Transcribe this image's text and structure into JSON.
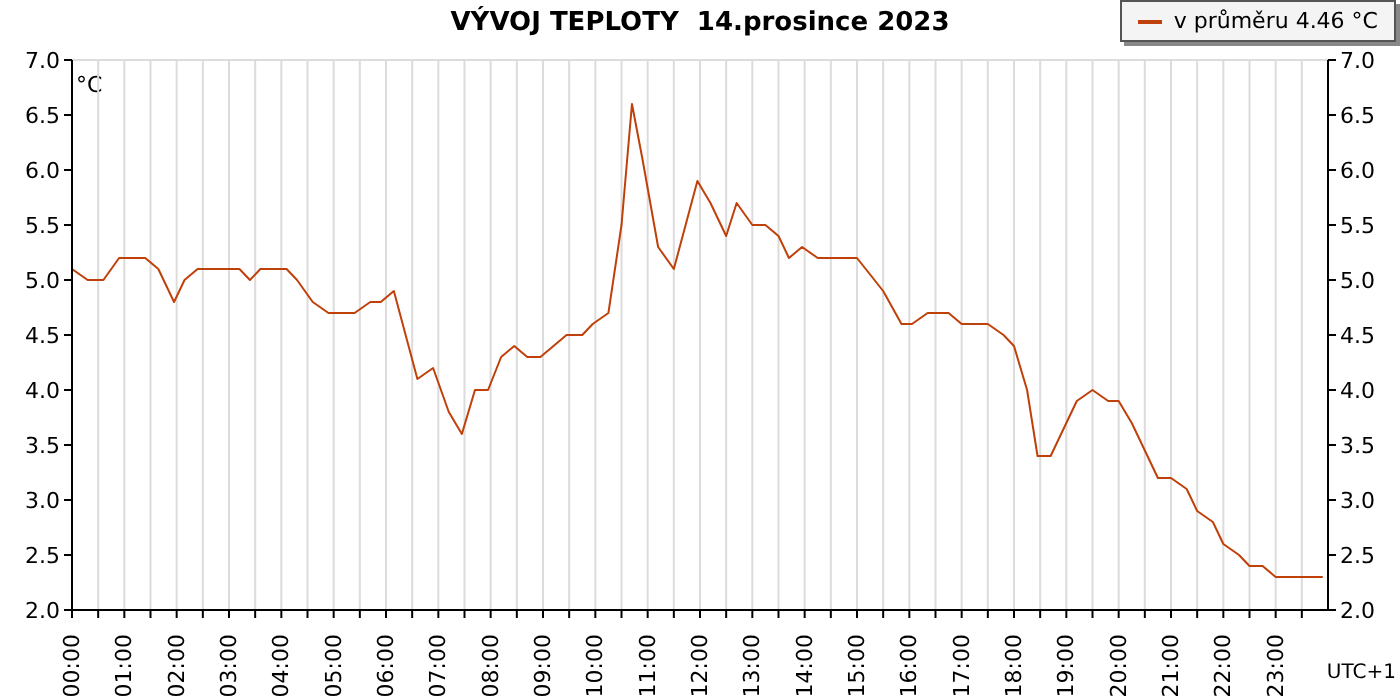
{
  "chart_data": {
    "type": "line",
    "title": "VÝVOJ TEPLOTY  14.prosince 2023",
    "ylabel": "°C",
    "xlabel": "UTC+1",
    "x": [
      0,
      0.3,
      0.6,
      0.9,
      1.4,
      1.65,
      1.95,
      2.15,
      2.4,
      3.2,
      3.4,
      3.6,
      4.1,
      4.3,
      4.6,
      4.9,
      5.4,
      5.7,
      5.9,
      6.15,
      6.6,
      6.9,
      7.2,
      7.45,
      7.7,
      7.95,
      8.2,
      8.45,
      8.7,
      8.95,
      9.45,
      9.75,
      9.95,
      10.25,
      10.5,
      10.7,
      10.9,
      11.2,
      11.5,
      11.95,
      12.2,
      12.5,
      12.7,
      13.0,
      13.25,
      13.5,
      13.7,
      13.95,
      14.25,
      15.0,
      15.5,
      15.85,
      16.05,
      16.35,
      16.75,
      17.0,
      17.5,
      17.8,
      18.0,
      18.25,
      18.45,
      18.7,
      19.0,
      19.2,
      19.5,
      19.8,
      20.0,
      20.25,
      20.55,
      20.75,
      21.0,
      21.3,
      21.5,
      21.8,
      22.0,
      22.3,
      22.5,
      22.75,
      23.0,
      23.9
    ],
    "series": [
      {
        "name": "v průměru 4.46 °C",
        "color": "#c0400a",
        "values": [
          5.1,
          5.0,
          5.0,
          5.2,
          5.2,
          5.1,
          4.8,
          5.0,
          5.1,
          5.1,
          5.0,
          5.1,
          5.1,
          5.0,
          4.8,
          4.7,
          4.7,
          4.8,
          4.8,
          4.9,
          4.1,
          4.2,
          3.8,
          3.6,
          4.0,
          4.0,
          4.3,
          4.4,
          4.3,
          4.3,
          4.5,
          4.5,
          4.6,
          4.7,
          5.5,
          6.6,
          6.1,
          5.3,
          5.1,
          5.9,
          5.7,
          5.4,
          5.7,
          5.5,
          5.5,
          5.4,
          5.2,
          5.3,
          5.2,
          5.2,
          4.9,
          4.6,
          4.6,
          4.7,
          4.7,
          4.6,
          4.6,
          4.5,
          4.4,
          4.0,
          3.4,
          3.4,
          3.7,
          3.9,
          4.0,
          3.9,
          3.9,
          3.7,
          3.4,
          3.2,
          3.2,
          3.1,
          2.9,
          2.8,
          2.6,
          2.5,
          2.4,
          2.4,
          2.3,
          2.3
        ]
      }
    ],
    "xlim": [
      0,
      24
    ],
    "xticks": [
      {
        "value": 0,
        "label": "00:00"
      },
      {
        "value": 0.5,
        "label": null
      },
      {
        "value": 1,
        "label": "01:00"
      },
      {
        "value": 1.5,
        "label": null
      },
      {
        "value": 2,
        "label": "02:00"
      },
      {
        "value": 2.5,
        "label": null
      },
      {
        "value": 3,
        "label": "03:00"
      },
      {
        "value": 3.5,
        "label": null
      },
      {
        "value": 4,
        "label": "04:00"
      },
      {
        "value": 4.5,
        "label": null
      },
      {
        "value": 5,
        "label": "05:00"
      },
      {
        "value": 5.5,
        "label": null
      },
      {
        "value": 6,
        "label": "06:00"
      },
      {
        "value": 6.5,
        "label": null
      },
      {
        "value": 7,
        "label": "07:00"
      },
      {
        "value": 7.5,
        "label": null
      },
      {
        "value": 8,
        "label": "08:00"
      },
      {
        "value": 8.5,
        "label": null
      },
      {
        "value": 9,
        "label": "09:00"
      },
      {
        "value": 9.5,
        "label": null
      },
      {
        "value": 10,
        "label": "10:00"
      },
      {
        "value": 10.5,
        "label": null
      },
      {
        "value": 11,
        "label": "11:00"
      },
      {
        "value": 11.5,
        "label": null
      },
      {
        "value": 12,
        "label": "12:00"
      },
      {
        "value": 12.5,
        "label": null
      },
      {
        "value": 13,
        "label": "13:00"
      },
      {
        "value": 13.5,
        "label": null
      },
      {
        "value": 14,
        "label": "14:00"
      },
      {
        "value": 14.5,
        "label": null
      },
      {
        "value": 15,
        "label": "15:00"
      },
      {
        "value": 15.5,
        "label": null
      },
      {
        "value": 16,
        "label": "16:00"
      },
      {
        "value": 16.5,
        "label": null
      },
      {
        "value": 17,
        "label": "17:00"
      },
      {
        "value": 17.5,
        "label": null
      },
      {
        "value": 18,
        "label": "18:00"
      },
      {
        "value": 18.5,
        "label": null
      },
      {
        "value": 19,
        "label": "19:00"
      },
      {
        "value": 19.5,
        "label": null
      },
      {
        "value": 20,
        "label": "20:00"
      },
      {
        "value": 20.5,
        "label": null
      },
      {
        "value": 21,
        "label": "21:00"
      },
      {
        "value": 21.5,
        "label": null
      },
      {
        "value": 22,
        "label": "22:00"
      },
      {
        "value": 22.5,
        "label": null
      },
      {
        "value": 23,
        "label": "23:00"
      },
      {
        "value": 23.5,
        "label": null
      }
    ],
    "ylim": [
      2,
      7
    ],
    "yticks": [
      {
        "value": 2,
        "label": "2.0"
      },
      {
        "value": 2.5,
        "label": "2.5"
      },
      {
        "value": 3,
        "label": "3.0"
      },
      {
        "value": 3.5,
        "label": "3.5"
      },
      {
        "value": 4,
        "label": "4.0"
      },
      {
        "value": 4.5,
        "label": "4.5"
      },
      {
        "value": 5,
        "label": "5.0"
      },
      {
        "value": 5.5,
        "label": "5.5"
      },
      {
        "value": 6,
        "label": "6.0"
      },
      {
        "value": 6.5,
        "label": "6.5"
      },
      {
        "value": 7,
        "label": "7.0"
      }
    ],
    "y2lim": [
      2,
      7
    ],
    "y2ticks": [
      {
        "value": 2,
        "label": "2.0"
      },
      {
        "value": 2.5,
        "label": "2.5"
      },
      {
        "value": 3,
        "label": "3.0"
      },
      {
        "value": 3.5,
        "label": "3.5"
      },
      {
        "value": 4,
        "label": "4.0"
      },
      {
        "value": 4.5,
        "label": "4.5"
      },
      {
        "value": 5,
        "label": "5.0"
      },
      {
        "value": 5.5,
        "label": "5.5"
      },
      {
        "value": 6,
        "label": "6.0"
      },
      {
        "value": 6.5,
        "label": "6.5"
      },
      {
        "value": 7,
        "label": "7.0"
      }
    ],
    "grid": true,
    "legend": "top right",
    "marker": "none",
    "line_style": "solid"
  }
}
